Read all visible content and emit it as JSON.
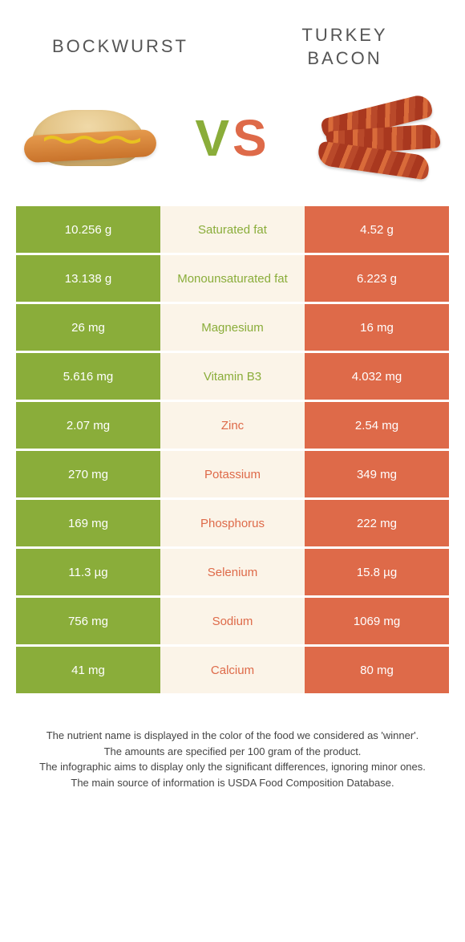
{
  "colors": {
    "left": "#8aad3a",
    "right": "#de6a49",
    "mid_bg": "#fbf4e8"
  },
  "header": {
    "left_title": "BOCKWURST",
    "right_title": "TURKEY BACON",
    "vs_v": "V",
    "vs_s": "S"
  },
  "rows": [
    {
      "label": "Saturated fat",
      "left": "10.256 g",
      "right": "4.52 g",
      "winner": "left"
    },
    {
      "label": "Monounsaturated fat",
      "left": "13.138 g",
      "right": "6.223 g",
      "winner": "left"
    },
    {
      "label": "Magnesium",
      "left": "26 mg",
      "right": "16 mg",
      "winner": "left"
    },
    {
      "label": "Vitamin B3",
      "left": "5.616 mg",
      "right": "4.032 mg",
      "winner": "left"
    },
    {
      "label": "Zinc",
      "left": "2.07 mg",
      "right": "2.54 mg",
      "winner": "right"
    },
    {
      "label": "Potassium",
      "left": "270 mg",
      "right": "349 mg",
      "winner": "right"
    },
    {
      "label": "Phosphorus",
      "left": "169 mg",
      "right": "222 mg",
      "winner": "right"
    },
    {
      "label": "Selenium",
      "left": "11.3 µg",
      "right": "15.8 µg",
      "winner": "right"
    },
    {
      "label": "Sodium",
      "left": "756 mg",
      "right": "1069 mg",
      "winner": "right"
    },
    {
      "label": "Calcium",
      "left": "41 mg",
      "right": "80 mg",
      "winner": "right"
    }
  ],
  "footnotes": [
    "The nutrient name is displayed in the color of the food we considered as 'winner'.",
    "The amounts are specified per 100 gram of the product.",
    "The infographic aims to display only the significant differences, ignoring minor ones.",
    "The main source of information is USDA Food Composition Database."
  ]
}
